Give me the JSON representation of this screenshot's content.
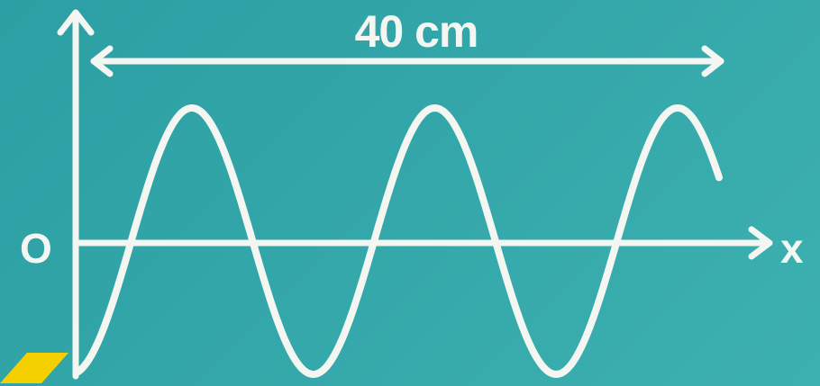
{
  "diagram": {
    "dimension_label": "40 cm",
    "origin_label": "O",
    "axis_label": "x",
    "colors": {
      "background": "#34a7aa",
      "line": "#f4f6f2",
      "marker": "#f5d000"
    }
  }
}
